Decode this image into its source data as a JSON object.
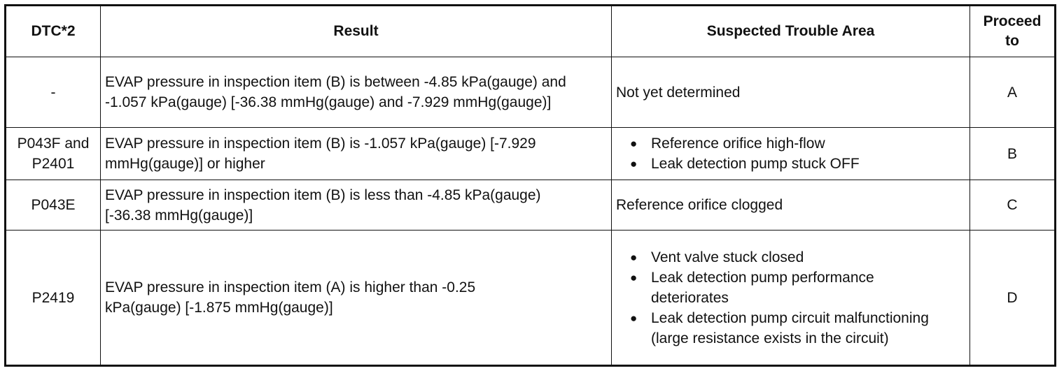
{
  "table": {
    "header": [
      "DTC*2",
      "Result",
      "Suspected Trouble Area",
      "Proceed to"
    ],
    "rows": [
      [
        "-",
        "EVAP pressure in inspection item (B) is between -4.85 kPa(gauge) and -1.057 kPa(gauge) [-36.38 mmHg(gauge) and -7.929 mmHg(gauge)]",
        "Not yet determined",
        "A"
      ],
      [
        "P043F and P2401",
        "EVAP pressure in inspection item (B) is -1.057 kPa(gauge) [-7.929 mmHg(gauge)] or higher",
        [
          "Reference orifice high-flow",
          "Leak detection pump stuck OFF"
        ],
        "B"
      ],
      [
        "P043E",
        "EVAP pressure in inspection item (B) is less than -4.85 kPa(gauge) [-36.38 mmHg(gauge)]",
        "Reference orifice clogged",
        "C"
      ],
      [
        "P2419",
        "EVAP pressure in inspection item (A) is higher than -0.25 kPa(gauge) [-1.875 mmHg(gauge)]",
        [
          "Vent valve stuck closed",
          "Leak detection pump performance deteriorates",
          "Leak detection pump circuit malfunctioning (large resistance exists in the circuit)"
        ],
        "D"
      ]
    ]
  }
}
